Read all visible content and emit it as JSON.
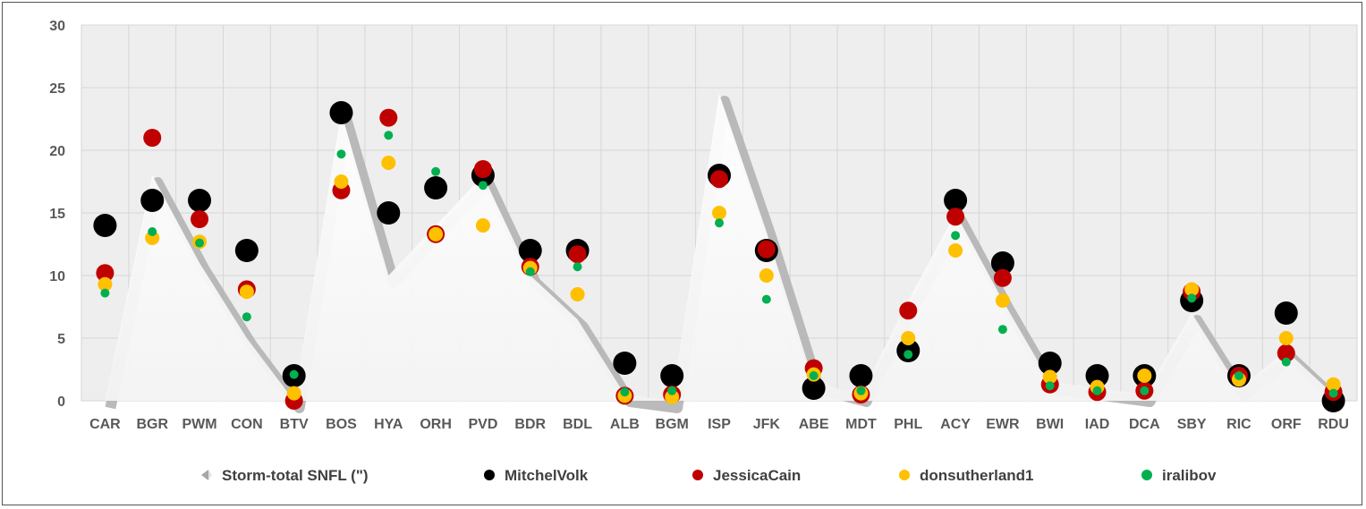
{
  "chart_data": {
    "type": "scatter",
    "title": "",
    "xlabel": "",
    "ylabel": "",
    "ylim": [
      0,
      30
    ],
    "yticks": [
      "0",
      "5",
      "10",
      "15",
      "20",
      "25",
      "30"
    ],
    "grid": true,
    "legend_position": "bottom",
    "categories": [
      "CAR",
      "BGR",
      "PWM",
      "CON",
      "BTV",
      "BOS",
      "HYA",
      "ORH",
      "PVD",
      "BDR",
      "BDL",
      "ALB",
      "BGM",
      "ISP",
      "JFK",
      "ABE",
      "MDT",
      "PHL",
      "ACY",
      "EWR",
      "BWI",
      "IAD",
      "DCA",
      "SBY",
      "RIC",
      "ORF",
      "RDU"
    ],
    "series": [
      {
        "name": "Storm-total SNFL (\")",
        "kind": "area",
        "color": "#b3b3b3",
        "values": [
          0,
          18,
          11,
          5,
          0,
          23,
          10,
          14,
          18,
          10,
          6.5,
          0.5,
          0,
          24.5,
          13.5,
          1.5,
          0.5,
          8,
          15,
          8,
          1.5,
          1,
          0.5,
          7,
          1,
          4,
          0.5
        ]
      },
      {
        "name": "MitchelVolk",
        "kind": "dot",
        "color": "#000000",
        "values": [
          14,
          16,
          16,
          12,
          2,
          23,
          15,
          17,
          18,
          12,
          12,
          3,
          2,
          18,
          12,
          1,
          2,
          4,
          16,
          11,
          3,
          2,
          2,
          8,
          2,
          7,
          0
        ]
      },
      {
        "name": "JessicaCain",
        "kind": "dot",
        "color": "#c00000",
        "values": [
          10.2,
          21,
          14.5,
          8.9,
          0,
          16.8,
          22.6,
          13.3,
          18.5,
          10.7,
          11.7,
          0.4,
          0.5,
          17.7,
          12.1,
          2.6,
          0.5,
          7.2,
          14.7,
          9.8,
          1.3,
          0.7,
          0.8,
          8.7,
          2,
          3.8,
          0.7
        ]
      },
      {
        "name": "donsutherland1",
        "kind": "dot",
        "color": "#ffc000",
        "values": [
          9.3,
          13,
          12.7,
          8.7,
          0.6,
          17.5,
          19,
          13.3,
          14,
          10.6,
          8.5,
          0.4,
          0.3,
          15,
          10,
          2.1,
          0.6,
          5,
          12,
          8,
          1.9,
          1.1,
          2,
          8.9,
          1.7,
          5,
          1.3
        ]
      },
      {
        "name": "iralibov",
        "kind": "dot",
        "color": "#00b050",
        "values": [
          8.6,
          13.5,
          12.6,
          6.7,
          2.1,
          19.7,
          21.2,
          18.3,
          17.2,
          10.3,
          10.7,
          0.7,
          0.8,
          14.2,
          8.1,
          2,
          0.8,
          3.7,
          13.2,
          5.7,
          1.2,
          0.8,
          0.8,
          8.2,
          2,
          3.1,
          0.6
        ]
      }
    ]
  }
}
